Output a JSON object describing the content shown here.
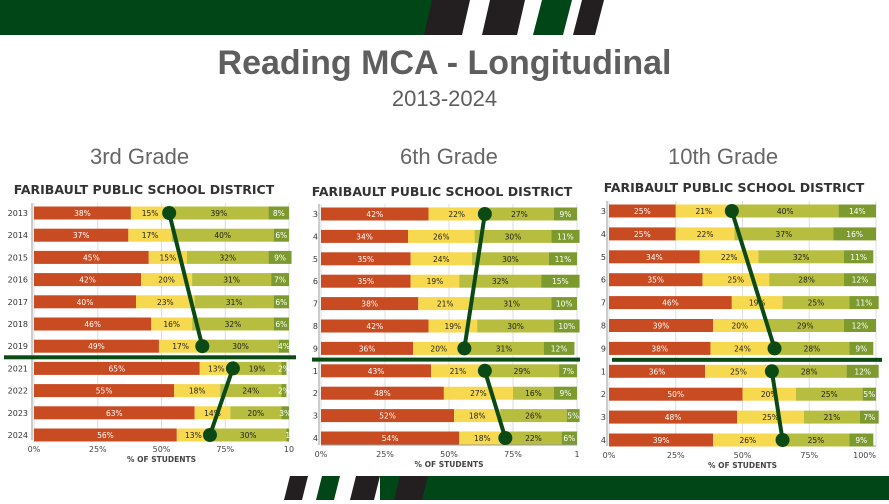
{
  "title": "Reading MCA - Longitudinal",
  "subtitle": "2013-2024",
  "colors": {
    "does_not_meet": "#c94b22",
    "partially_meets": "#f6d94f",
    "meets": "#b6bd3f",
    "exceeds": "#7c9a2e",
    "trend_line": "#0b4a14",
    "brand_green": "#004617",
    "brand_dark": "#231f20"
  },
  "chart_data": [
    {
      "type": "bar",
      "stacked": true,
      "orientation": "horizontal",
      "grade_label": "3rd Grade",
      "title": "FARIBAULT PUBLIC SCHOOL DISTRICT",
      "xlabel": "% OF STUDENTS",
      "xticks": [
        "0%",
        "25%",
        "50%",
        "75%",
        "10"
      ],
      "xlim": [
        0,
        100
      ],
      "categories": [
        "2013",
        "2014",
        "2015",
        "2016",
        "2017",
        "2018",
        "2019",
        "2021",
        "2022",
        "2023",
        "2024"
      ],
      "series": [
        {
          "values": [
            38,
            37,
            45,
            42,
            40,
            46,
            49,
            65,
            55,
            63,
            56
          ]
        },
        {
          "values": [
            15,
            17,
            15,
            20,
            23,
            16,
            17,
            13,
            18,
            14,
            13
          ]
        },
        {
          "values": [
            39,
            40,
            32,
            31,
            31,
            32,
            30,
            19,
            24,
            20,
            30
          ]
        },
        {
          "values": [
            8,
            6,
            9,
            7,
            6,
            6,
            4,
            2,
            2,
            3,
            1
          ]
        }
      ],
      "labels": [
        [
          "38%",
          "37%",
          "45%",
          "42%",
          "40%",
          "46%",
          "49%",
          "65%",
          "55%",
          "63%",
          "56%"
        ],
        [
          "15%",
          "17%",
          "15%",
          "20%",
          "23%",
          "16%",
          "17%",
          "13%",
          "18%",
          "14%",
          "13%"
        ],
        [
          "39%",
          "40%",
          "32%",
          "31%",
          "31%",
          "32%",
          "30%",
          "19%",
          "24%",
          "20%",
          "30%"
        ],
        [
          "8%",
          "6%",
          "9%",
          "7%",
          "6%",
          "6%",
          "4%",
          "2%",
          "2%",
          "3%",
          "1"
        ]
      ]
    },
    {
      "type": "bar",
      "stacked": true,
      "orientation": "horizontal",
      "grade_label": "6th Grade",
      "title": "FARIBAULT PUBLIC SCHOOL DISTRICT",
      "xlabel": "% OF STUDENTS",
      "xticks": [
        "0%",
        "25%",
        "50%",
        "75%",
        "1"
      ],
      "xlim": [
        0,
        100
      ],
      "categories": [
        "2013",
        "2014",
        "2015",
        "2016",
        "2017",
        "2018",
        "2019",
        "2021",
        "2022",
        "2023",
        "2024"
      ],
      "series": [
        {
          "values": [
            42,
            34,
            35,
            35,
            38,
            42,
            36,
            43,
            48,
            52,
            54
          ]
        },
        {
          "values": [
            22,
            26,
            24,
            19,
            21,
            19,
            20,
            21,
            27,
            18,
            18
          ]
        },
        {
          "values": [
            27,
            30,
            30,
            32,
            31,
            30,
            31,
            29,
            16,
            26,
            22
          ]
        },
        {
          "values": [
            9,
            11,
            11,
            15,
            10,
            10,
            12,
            7,
            9,
            5,
            6
          ]
        }
      ],
      "labels": [
        [
          "42%",
          "34%",
          "35%",
          "35%",
          "38%",
          "42%",
          "36%",
          "43%",
          "48%",
          "52%",
          "54%"
        ],
        [
          "22%",
          "26%",
          "24%",
          "19%",
          "21%",
          "19%",
          "20%",
          "21%",
          "27%",
          "18%",
          "18%"
        ],
        [
          "27%",
          "30%",
          "30%",
          "32%",
          "31%",
          "30%",
          "31%",
          "29%",
          "16%",
          "26%",
          "22%"
        ],
        [
          "9%",
          "11%",
          "11%",
          "15%",
          "10%",
          "10%",
          "12%",
          "7%",
          "9%",
          "5%",
          "6%"
        ]
      ]
    },
    {
      "type": "bar",
      "stacked": true,
      "orientation": "horizontal",
      "grade_label": "10th Grade",
      "title": "FARIBAULT PUBLIC SCHOOL DISTRICT",
      "xlabel": "% OF STUDENTS",
      "xticks": [
        "0%",
        "25%",
        "50%",
        "75%",
        "100%"
      ],
      "xlim": [
        0,
        100
      ],
      "categories": [
        "2013",
        "2014",
        "2015",
        "2016",
        "2017",
        "2018",
        "2019",
        "2021",
        "2022",
        "2023",
        "2024"
      ],
      "series": [
        {
          "values": [
            25,
            25,
            34,
            35,
            46,
            39,
            38,
            36,
            50,
            48,
            39
          ]
        },
        {
          "values": [
            21,
            22,
            22,
            25,
            19,
            20,
            24,
            25,
            20,
            25,
            26
          ]
        },
        {
          "values": [
            40,
            37,
            32,
            28,
            25,
            29,
            28,
            28,
            25,
            21,
            25
          ]
        },
        {
          "values": [
            14,
            16,
            11,
            12,
            11,
            12,
            9,
            12,
            5,
            7,
            9
          ]
        }
      ],
      "labels": [
        [
          "25%",
          "25%",
          "34%",
          "35%",
          "46%",
          "39%",
          "38%",
          "36%",
          "50%",
          "48%",
          "39%"
        ],
        [
          "21%",
          "22%",
          "22%",
          "25%",
          "19%",
          "20%",
          "24%",
          "25%",
          "20%",
          "25%",
          "26%"
        ],
        [
          "40%",
          "37%",
          "32%",
          "28%",
          "25%",
          "29%",
          "28%",
          "28%",
          "25%",
          "21%",
          "25%"
        ],
        [
          "14%",
          "16%",
          "11%",
          "12%",
          "11%",
          "12%",
          "9%",
          "12%",
          "5%",
          "7%",
          "9%"
        ]
      ]
    }
  ]
}
